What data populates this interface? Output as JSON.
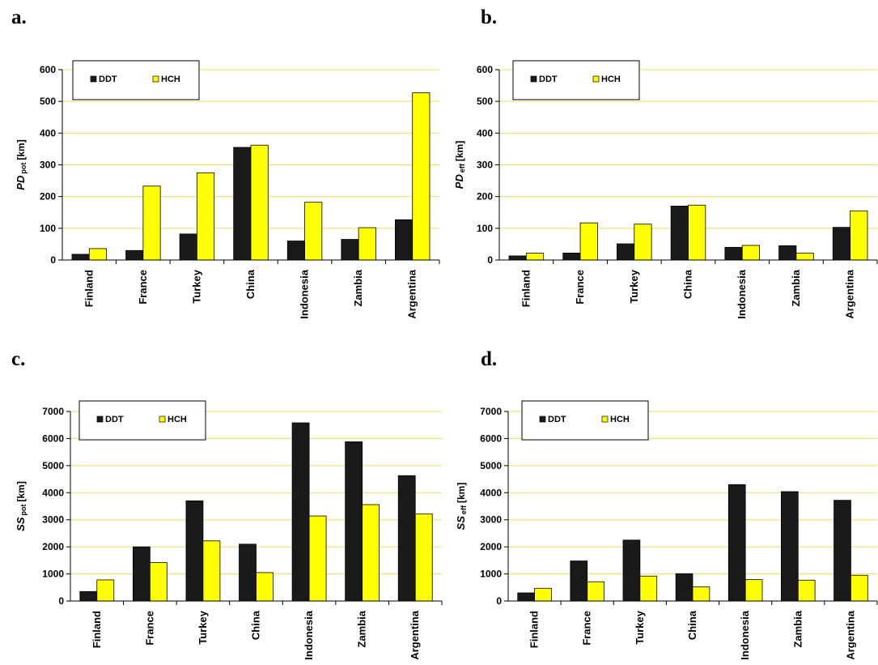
{
  "chart_data": [
    {
      "panel_label": "a.",
      "type": "bar",
      "ylabel_main": "PD",
      "ylabel_sub": "pot",
      "ylabel_unit": "[km]",
      "ylim": [
        0,
        600
      ],
      "yticks": [
        "0",
        "100",
        "200",
        "300",
        "400",
        "500",
        "600"
      ],
      "categories": [
        "Finland",
        "France",
        "Turkey",
        "China",
        "Indonesia",
        "Zambia",
        "Argentina"
      ],
      "series": [
        {
          "name": "DDT",
          "values": [
            18,
            30,
            82,
            355,
            60,
            65,
            127
          ]
        },
        {
          "name": "HCH",
          "values": [
            36,
            233,
            275,
            362,
            182,
            102,
            527
          ]
        }
      ],
      "grid": true,
      "legend": "top-left"
    },
    {
      "panel_label": "b.",
      "type": "bar",
      "ylabel_main": "PD",
      "ylabel_sub": "eff",
      "ylabel_unit": "[km]",
      "ylim": [
        0,
        600
      ],
      "yticks": [
        "0",
        "100",
        "200",
        "300",
        "400",
        "500",
        "600"
      ],
      "categories": [
        "Finland",
        "France",
        "Turkey",
        "China",
        "Indonesia",
        "Zambia",
        "Argentina"
      ],
      "series": [
        {
          "name": "DDT",
          "values": [
            13,
            22,
            51,
            170,
            40,
            45,
            103
          ]
        },
        {
          "name": "HCH",
          "values": [
            22,
            117,
            113,
            173,
            46,
            22,
            155
          ]
        }
      ],
      "grid": true,
      "legend": "top-left"
    },
    {
      "panel_label": "c.",
      "type": "bar",
      "ylabel_main": "SS",
      "ylabel_sub": "pot",
      "ylabel_unit": "[km]",
      "ylim": [
        0,
        7000
      ],
      "yticks": [
        "0",
        "1000",
        "2000",
        "3000",
        "4000",
        "5000",
        "6000",
        "7000"
      ],
      "categories": [
        "Finland",
        "France",
        "Turkey",
        "China",
        "Indonesia",
        "Zambia",
        "Argentina"
      ],
      "series": [
        {
          "name": "DDT",
          "values": [
            350,
            2000,
            3700,
            2100,
            6580,
            5880,
            4630
          ]
        },
        {
          "name": "HCH",
          "values": [
            780,
            1420,
            2220,
            1050,
            3140,
            3560,
            3220
          ]
        }
      ],
      "grid": true,
      "legend": "top-left"
    },
    {
      "panel_label": "d.",
      "type": "bar",
      "ylabel_main": "SS",
      "ylabel_sub": "eff",
      "ylabel_unit": "[km]",
      "ylim": [
        0,
        7000
      ],
      "yticks": [
        "0",
        "1000",
        "2000",
        "3000",
        "4000",
        "5000",
        "6000",
        "7000"
      ],
      "categories": [
        "Finland",
        "France",
        "Turkey",
        "China",
        "Indonesia",
        "Zambia",
        "Argentina"
      ],
      "series": [
        {
          "name": "DDT",
          "values": [
            300,
            1480,
            2250,
            1010,
            4300,
            4040,
            3720
          ]
        },
        {
          "name": "HCH",
          "values": [
            470,
            710,
            920,
            520,
            790,
            770,
            950
          ]
        }
      ],
      "grid": true,
      "legend": "top-left"
    }
  ],
  "colors": {
    "ddt": "#1a1a1a",
    "hch": "#ffff00",
    "grid": "#e8e060",
    "axis": "#000000"
  }
}
